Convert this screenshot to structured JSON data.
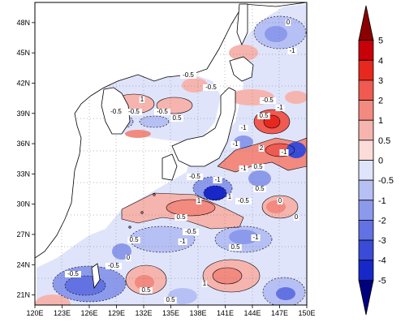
{
  "map": {
    "lat_ticks": [
      "48N",
      "45N",
      "42N",
      "39N",
      "36N",
      "33N",
      "30N",
      "27N",
      "24N",
      "21N"
    ],
    "lon_ticks": [
      "120E",
      "123E",
      "126E",
      "129E",
      "132E",
      "135E",
      "138E",
      "141E",
      "144E",
      "147E",
      "150E"
    ],
    "lat_range": [
      20,
      50
    ],
    "lon_range": [
      120,
      150
    ],
    "grid": true,
    "contour_labels": [
      "-0.5",
      "-0.5",
      "-0.5",
      "0.5",
      "-0.5",
      "1",
      "-0.5",
      "-1",
      "0",
      "-1",
      "-1",
      "0.5",
      "-1",
      "-1",
      "-1",
      "0.5",
      "-0.5",
      "-1",
      "1",
      "-0.5",
      "0.5",
      "0",
      "1",
      "0.5",
      "-1",
      "0.5",
      "-0.5",
      "0",
      "0.5",
      "-1",
      "0",
      "-0.5",
      "2",
      "-0.5",
      "-0.5",
      "1",
      "0.5",
      "0.5"
    ]
  },
  "colorbar": {
    "levels": [
      "5",
      "4",
      "3",
      "2",
      "1",
      "0.5",
      "0",
      "-0.5",
      "-1",
      "-2",
      "-3",
      "-4",
      "-5"
    ],
    "colors": [
      "#8b0000",
      "#c8000a",
      "#e8281e",
      "#f05a50",
      "#f28a80",
      "#f6b4ae",
      "#fbdcd8",
      "#dfe4fb",
      "#b6c0f4",
      "#8c9aec",
      "#6372e3",
      "#3a4bd8",
      "#1828c8",
      "#00007e"
    ]
  }
}
